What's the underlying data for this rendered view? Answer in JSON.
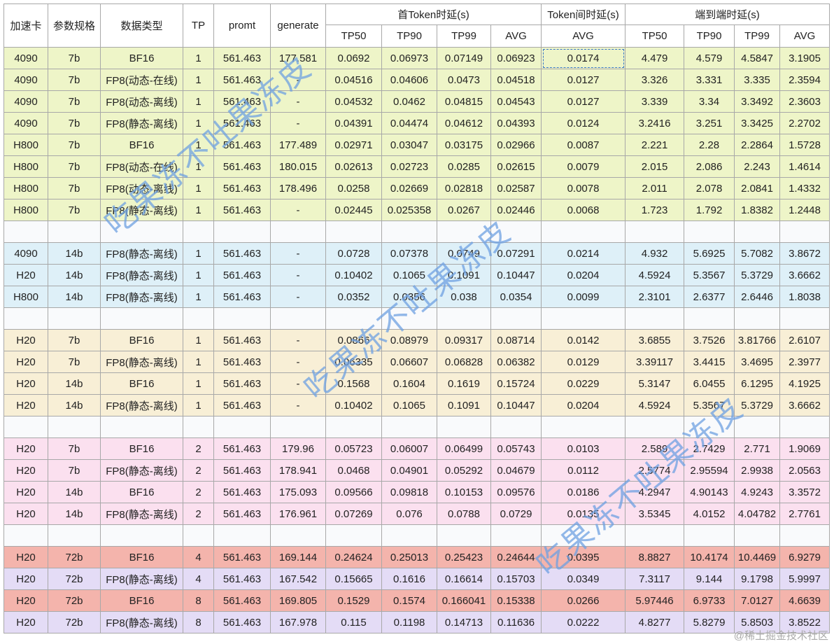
{
  "header": {
    "top": [
      "加速卡",
      "参数规格",
      "数据类型",
      "TP",
      "promt",
      "generate",
      "首Token时延(s)",
      "Token间时延(s)",
      "端到端时延(s)"
    ],
    "sub": [
      "TP50",
      "TP90",
      "TP99",
      "AVG",
      "AVG",
      "TP50",
      "TP90",
      "TP99",
      "AVG"
    ]
  },
  "groups": [
    {
      "colors": [
        "#eef5c8"
      ],
      "rows": [
        [
          "4090",
          "7b",
          "BF16",
          "1",
          "561.463",
          "177.581",
          "0.0692",
          "0.06973",
          "0.07149",
          "0.06923",
          "0.0174",
          "4.479",
          "4.579",
          "4.5847",
          "3.1905"
        ],
        [
          "4090",
          "7b",
          "FP8(动态-在线)",
          "1",
          "561.463",
          "-",
          "0.04516",
          "0.04606",
          "0.0473",
          "0.04518",
          "0.0127",
          "3.326",
          "3.331",
          "3.335",
          "2.3594"
        ],
        [
          "4090",
          "7b",
          "FP8(动态-离线)",
          "1",
          "561.463",
          "-",
          "0.04532",
          "0.0462",
          "0.04815",
          "0.04543",
          "0.0127",
          "3.339",
          "3.34",
          "3.3492",
          "2.3603"
        ],
        [
          "4090",
          "7b",
          "FP8(静态-离线)",
          "1",
          "561.463",
          "-",
          "0.04391",
          "0.04474",
          "0.04612",
          "0.04393",
          "0.0124",
          "3.2416",
          "3.251",
          "3.3425",
          "2.2702"
        ],
        [
          "H800",
          "7b",
          "BF16",
          "1",
          "561.463",
          "177.489",
          "0.02971",
          "0.03047",
          "0.03175",
          "0.02966",
          "0.0087",
          "2.221",
          "2.28",
          "2.2864",
          "1.5728"
        ],
        [
          "H800",
          "7b",
          "FP8(动态-在线)",
          "1",
          "561.463",
          "180.015",
          "0.02613",
          "0.02723",
          "0.0285",
          "0.02615",
          "0.0079",
          "2.015",
          "2.086",
          "2.243",
          "1.4614"
        ],
        [
          "H800",
          "7b",
          "FP8(动态-离线)",
          "1",
          "561.463",
          "178.496",
          "0.0258",
          "0.02669",
          "0.02818",
          "0.02587",
          "0.0078",
          "2.011",
          "2.078",
          "2.0841",
          "1.4332"
        ],
        [
          "H800",
          "7b",
          "FP8(静态-离线)",
          "1",
          "561.463",
          "-",
          "0.02445",
          "0.025358",
          "0.0267",
          "0.02446",
          "0.0068",
          "1.723",
          "1.792",
          "1.8382",
          "1.2448"
        ]
      ]
    },
    {
      "colors": [
        "#def0f8"
      ],
      "rows": [
        [
          "4090",
          "14b",
          "FP8(静态-离线)",
          "1",
          "561.463",
          "-",
          "0.0728",
          "0.07378",
          "0.0749",
          "0.07291",
          "0.0214",
          "4.932",
          "5.6925",
          "5.7082",
          "3.8672"
        ],
        [
          "H20",
          "14b",
          "FP8(静态-离线)",
          "1",
          "561.463",
          "-",
          "0.10402",
          "0.1065",
          "0.1091",
          "0.10447",
          "0.0204",
          "4.5924",
          "5.3567",
          "5.3729",
          "3.6662"
        ],
        [
          "H800",
          "14b",
          "FP8(静态-离线)",
          "1",
          "561.463",
          "-",
          "0.0352",
          "0.0356",
          "0.038",
          "0.0354",
          "0.0099",
          "2.3101",
          "2.6377",
          "2.6446",
          "1.8038"
        ]
      ]
    },
    {
      "colors": [
        "#f8efd6"
      ],
      "rows": [
        [
          "H20",
          "7b",
          "BF16",
          "1",
          "561.463",
          "-",
          "0.0866",
          "0.08979",
          "0.09317",
          "0.08714",
          "0.0142",
          "3.6855",
          "3.7526",
          "3.81766",
          "2.6107"
        ],
        [
          "H20",
          "7b",
          "FP8(静态-离线)",
          "1",
          "561.463",
          "-",
          "0.06335",
          "0.06607",
          "0.06828",
          "0.06382",
          "0.0129",
          "3.39117",
          "3.4415",
          "3.4695",
          "2.3977"
        ],
        [
          "H20",
          "14b",
          "BF16",
          "1",
          "561.463",
          "-",
          "0.1568",
          "0.1604",
          "0.1619",
          "0.15724",
          "0.0229",
          "5.3147",
          "6.0455",
          "6.1295",
          "4.1925"
        ],
        [
          "H20",
          "14b",
          "FP8(静态-离线)",
          "1",
          "561.463",
          "-",
          "0.10402",
          "0.1065",
          "0.1091",
          "0.10447",
          "0.0204",
          "4.5924",
          "5.3567",
          "5.3729",
          "3.6662"
        ]
      ]
    },
    {
      "colors": [
        "#fbe0ef"
      ],
      "rows": [
        [
          "H20",
          "7b",
          "BF16",
          "2",
          "561.463",
          "179.96",
          "0.05723",
          "0.06007",
          "0.06499",
          "0.05743",
          "0.0103",
          "2.589",
          "2.7429",
          "2.771",
          "1.9069"
        ],
        [
          "H20",
          "7b",
          "FP8(静态-离线)",
          "2",
          "561.463",
          "178.941",
          "0.0468",
          "0.04901",
          "0.05292",
          "0.04679",
          "0.0112",
          "2.5774",
          "2.95594",
          "2.9938",
          "2.0563"
        ],
        [
          "H20",
          "14b",
          "BF16",
          "2",
          "561.463",
          "175.093",
          "0.09566",
          "0.09818",
          "0.10153",
          "0.09576",
          "0.0186",
          "4.2947",
          "4.90143",
          "4.9243",
          "3.3572"
        ],
        [
          "H20",
          "14b",
          "FP8(静态-离线)",
          "2",
          "561.463",
          "176.961",
          "0.07269",
          "0.076",
          "0.0788",
          "0.0729",
          "0.0135",
          "3.5345",
          "4.0152",
          "4.04782",
          "2.7761"
        ]
      ]
    },
    {
      "colors": [
        "#f4b4ac",
        "#e4dcf6"
      ],
      "rows": [
        [
          "H20",
          "72b",
          "BF16",
          "4",
          "561.463",
          "169.144",
          "0.24624",
          "0.25013",
          "0.25423",
          "0.24644",
          "0.0395",
          "8.8827",
          "10.4174",
          "10.4469",
          "6.9279"
        ],
        [
          "H20",
          "72b",
          "FP8(静态-离线)",
          "4",
          "561.463",
          "167.542",
          "0.15665",
          "0.1616",
          "0.16614",
          "0.15703",
          "0.0349",
          "7.3117",
          "9.144",
          "9.1798",
          "5.9997"
        ],
        [
          "H20",
          "72b",
          "BF16",
          "8",
          "561.463",
          "169.805",
          "0.1529",
          "0.1574",
          "0.166041",
          "0.15338",
          "0.0266",
          "5.97446",
          "6.9733",
          "7.0127",
          "4.6639"
        ],
        [
          "H20",
          "72b",
          "FP8(静态-离线)",
          "8",
          "561.463",
          "167.978",
          "0.115",
          "0.1198",
          "0.14713",
          "0.11636",
          "0.0222",
          "4.8277",
          "5.8279",
          "5.8503",
          "3.8522"
        ]
      ]
    }
  ],
  "watermarks": [
    "吃果冻不吐果冻皮",
    "吃果冻不吐果冻皮",
    "吃果冻不吐果冻皮"
  ],
  "credit": "@稀土掘金技术社区"
}
